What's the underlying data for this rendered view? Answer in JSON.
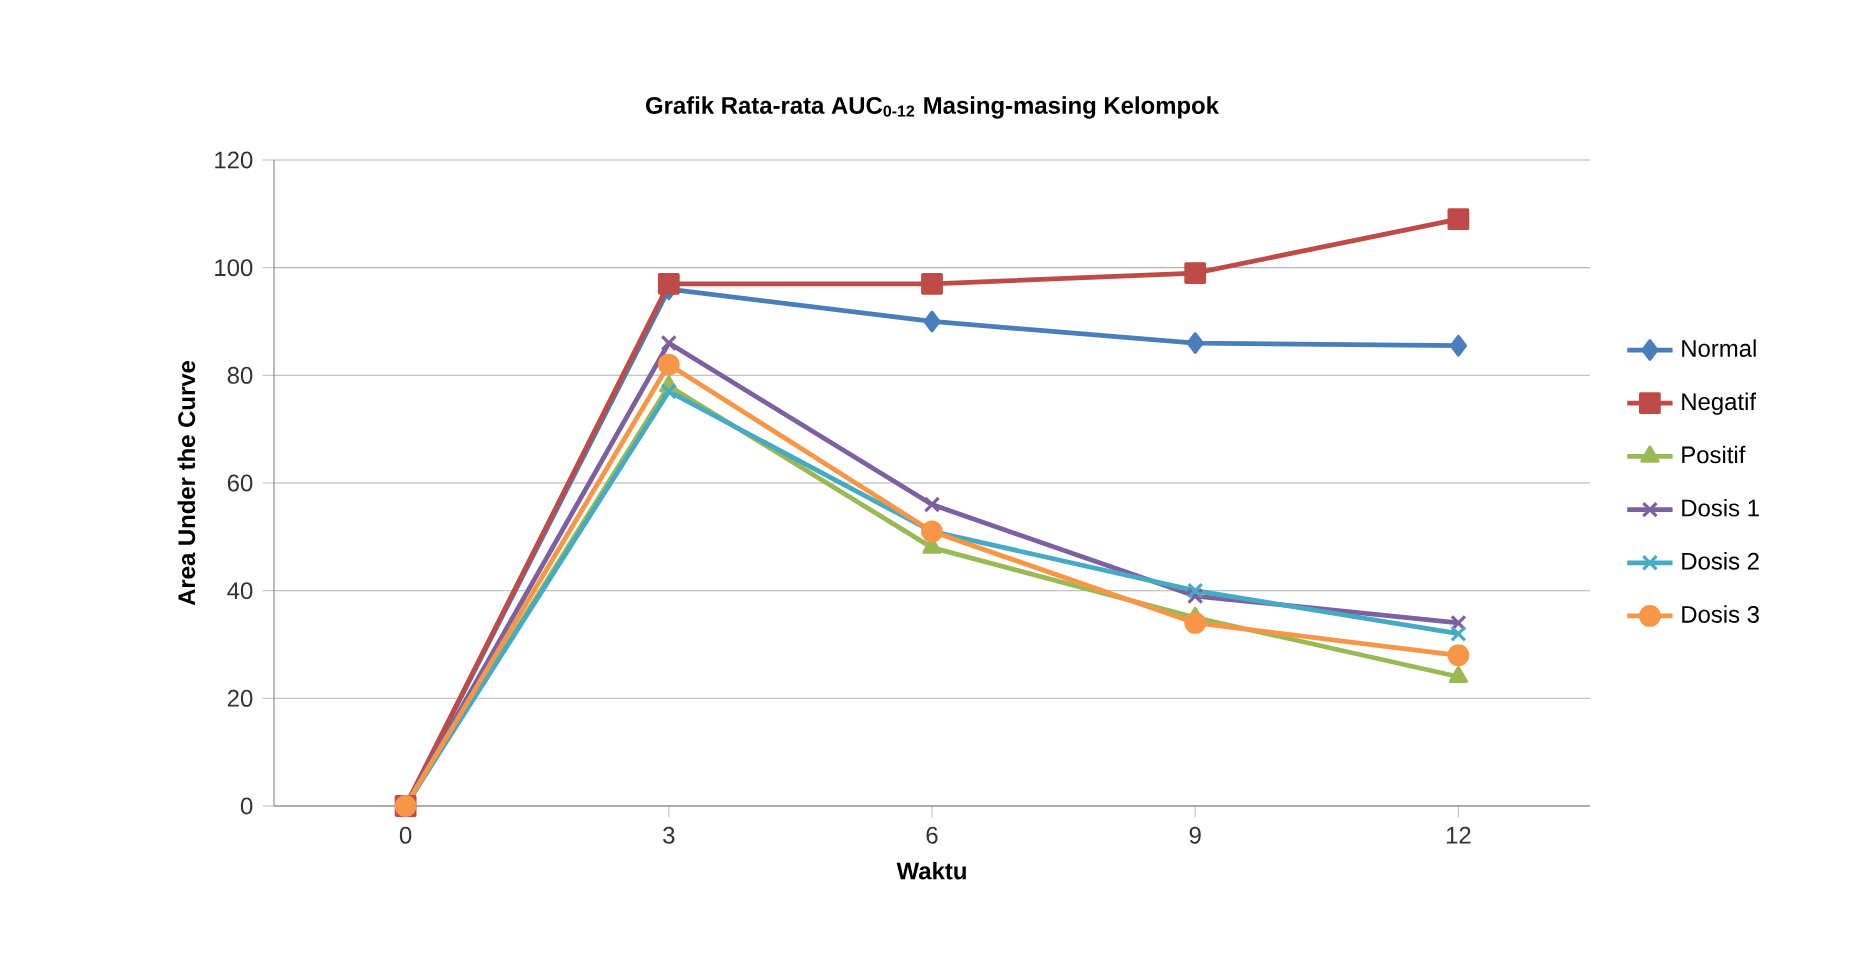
{
  "chart_data": {
    "type": "line",
    "title": "Grafik Rata-rata AUC$_{0-12}$ Masing-masing Kelompok",
    "xlabel": "Waktu",
    "ylabel": "Area Under the Curve",
    "categories": [
      "0",
      "3",
      "6",
      "9",
      "12"
    ],
    "series": [
      {
        "name": "Normal",
        "color": "#4a7ebb",
        "marker": "diamond",
        "values": [
          0,
          96,
          90,
          86,
          85.5
        ]
      },
      {
        "name": "Negatif",
        "color": "#be4b48",
        "marker": "square",
        "values": [
          0,
          97,
          97,
          99,
          109
        ]
      },
      {
        "name": "Positif",
        "color": "#98b954",
        "marker": "triangle",
        "values": [
          0,
          78,
          48,
          35,
          24
        ]
      },
      {
        "name": "Dosis 1",
        "color": "#7d60a0",
        "marker": "cross",
        "values": [
          0,
          86,
          56,
          39,
          34
        ]
      },
      {
        "name": "Dosis 2",
        "color": "#46aac5",
        "marker": "cross",
        "values": [
          0,
          77,
          51,
          40,
          32
        ]
      },
      {
        "name": "Dosis 3",
        "color": "#f79646",
        "marker": "circle",
        "values": [
          0,
          82,
          51,
          34,
          28
        ]
      }
    ],
    "ylim": [
      0,
      120
    ],
    "yticks": [
      0,
      20,
      40,
      60,
      80,
      100,
      120
    ],
    "grid": "y",
    "legend": "right",
    "line_style": "solid"
  }
}
